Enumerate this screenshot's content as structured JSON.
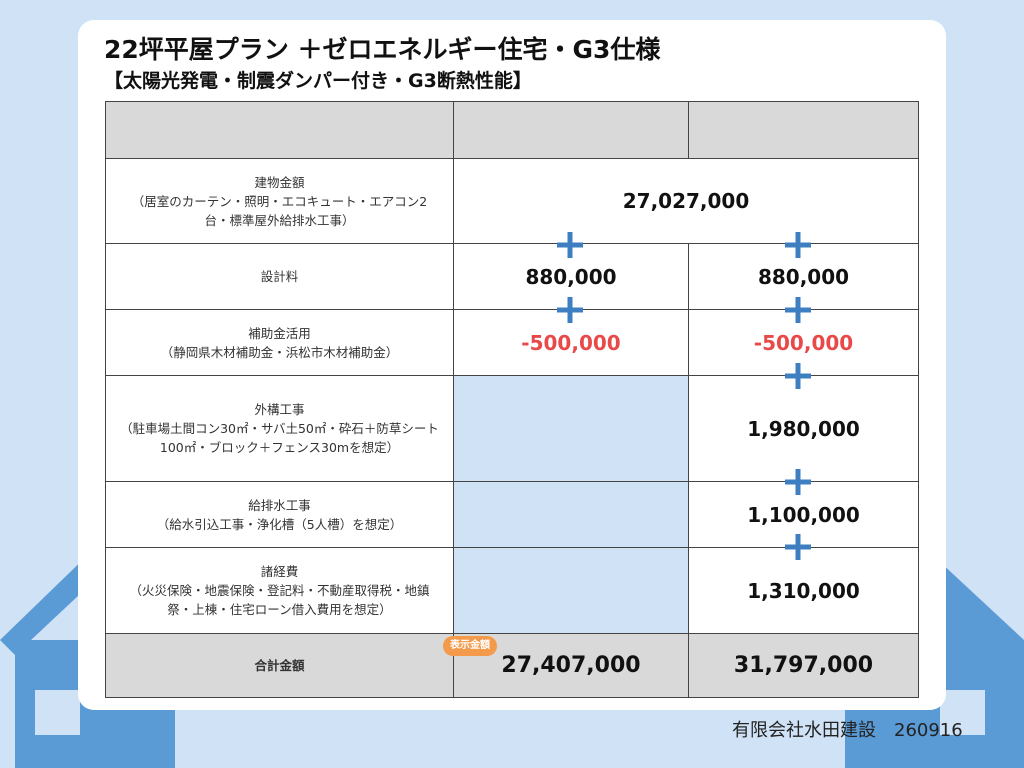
{
  "header": {
    "title": "22坪平屋プラン ＋ゼロエネルギー住宅・G3仕様",
    "subtitle": "【太陽光発電・制震ダンパー付き・G3断熱性能】"
  },
  "table": {
    "rows": [
      {
        "label": "建物金額",
        "note": "（居室のカーテン・照明・エコキュート・エアコン2台・標準屋外給排水工事）",
        "both": "27,027,000"
      },
      {
        "label": "設計料",
        "plan_a": "880,000",
        "plan_b": "880,000"
      },
      {
        "label": "補助金活用",
        "note": "（静岡県木材補助金・浜松市木材補助金）",
        "plan_a": "-500,000",
        "plan_b": "-500,000"
      },
      {
        "label": "外構工事",
        "note": "（駐車場土間コン30㎡・サバ土50㎡・砕石＋防草シート100㎡・ブロック＋フェンス30mを想定）",
        "plan_b": "1,980,000"
      },
      {
        "label": "給排水工事",
        "note": "（給水引込工事・浄化槽（5人槽）を想定）",
        "plan_b": "1,100,000"
      },
      {
        "label": "諸経費",
        "note": "（火災保険・地震保険・登記料・不動産取得税・地鎮祭・上棟・住宅ローン借入費用を想定）",
        "plan_b": "1,310,000"
      }
    ],
    "total": {
      "label": "合計金額",
      "badge": "表示金額",
      "plan_a": "27,407,000",
      "plan_b": "31,797,000"
    }
  },
  "footer": "有限会社水田建設　260916"
}
